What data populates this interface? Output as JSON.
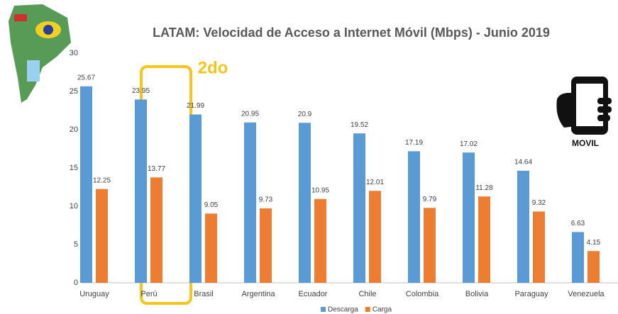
{
  "chart_data": {
    "type": "bar",
    "title": "LATAM: Velocidad de Acceso a Internet Móvil (Mbps) - Junio 2019",
    "categories": [
      "Uruguay",
      "Perú",
      "Brasil",
      "Argentina",
      "Ecuador",
      "Chile",
      "Colombia",
      "Bolivia",
      "Paraguay",
      "Venezuela"
    ],
    "series": [
      {
        "name": "Descarga",
        "color": "#5b9bd5",
        "values": [
          25.67,
          23.95,
          21.99,
          20.95,
          20.9,
          19.52,
          17.19,
          17.02,
          14.64,
          6.63
        ]
      },
      {
        "name": "Carga",
        "color": "#ed7d31",
        "values": [
          12.25,
          13.77,
          9.05,
          9.73,
          10.95,
          12.01,
          9.79,
          11.28,
          9.32,
          4.15
        ]
      }
    ],
    "ylim": [
      0,
      30
    ],
    "yticks": [
      0,
      5,
      10,
      15,
      20,
      25,
      30
    ],
    "grid": false,
    "legend": "bottom",
    "annotations": [
      "2do",
      "MOVIL"
    ]
  }
}
